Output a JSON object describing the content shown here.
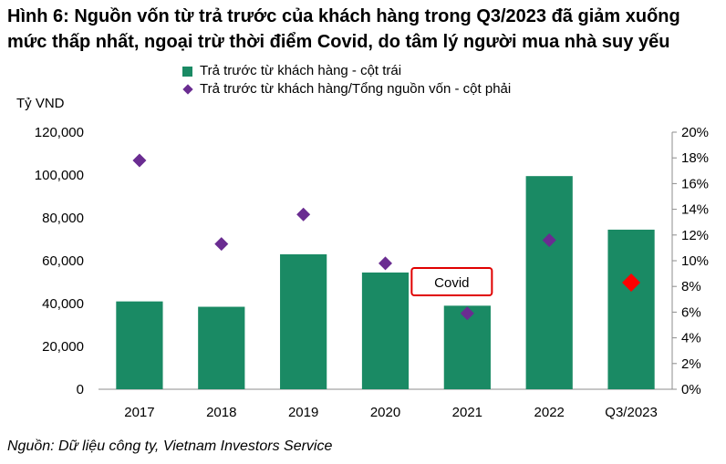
{
  "title_line1": "Hình 6: Nguồn vốn từ trả trước của khách hàng trong Q3/2023 đã giảm xuống",
  "title_line2": "mức thấp nhất, ngoại trừ thời điểm Covid, do tâm lý người mua nhà suy yếu",
  "source": "Nguồn: Dữ liệu công ty, Vietnam Investors Service",
  "chart_data": {
    "type": "bar",
    "categories": [
      "2017",
      "2018",
      "2019",
      "2020",
      "2021",
      "2022",
      "Q3/2023"
    ],
    "series": [
      {
        "name": "Trả trước từ khách hàng - cột trái",
        "type": "bar",
        "axis": "left",
        "color": "#1a8a64",
        "values": [
          41000,
          38500,
          63000,
          54500,
          39000,
          99500,
          74500
        ]
      },
      {
        "name": "Trả trước từ khách hàng/Tổng nguồn vốn - cột phải",
        "type": "scatter",
        "axis": "right",
        "color": "#6a2c91",
        "highlight_color": "#ff0000",
        "highlight_index": 6,
        "values": [
          17.8,
          11.3,
          13.6,
          9.8,
          5.9,
          11.6,
          8.3
        ]
      }
    ],
    "ylabel": "Tỷ VND",
    "ylim": [
      0,
      120000
    ],
    "yticks": [
      0,
      20000,
      40000,
      60000,
      80000,
      100000,
      120000
    ],
    "ytick_labels": [
      "0",
      "20,000",
      "40,000",
      "60,000",
      "80,000",
      "100,000",
      "120,000"
    ],
    "y2lim": [
      0,
      20
    ],
    "y2ticks": [
      0,
      2,
      4,
      6,
      8,
      10,
      12,
      14,
      16,
      18,
      20
    ],
    "y2tick_labels": [
      "0%",
      "2%",
      "4%",
      "6%",
      "8%",
      "10%",
      "12%",
      "14%",
      "16%",
      "18%",
      "20%"
    ],
    "annotation": {
      "text": "Covid",
      "category_index": 4
    },
    "legend_position": "top"
  }
}
